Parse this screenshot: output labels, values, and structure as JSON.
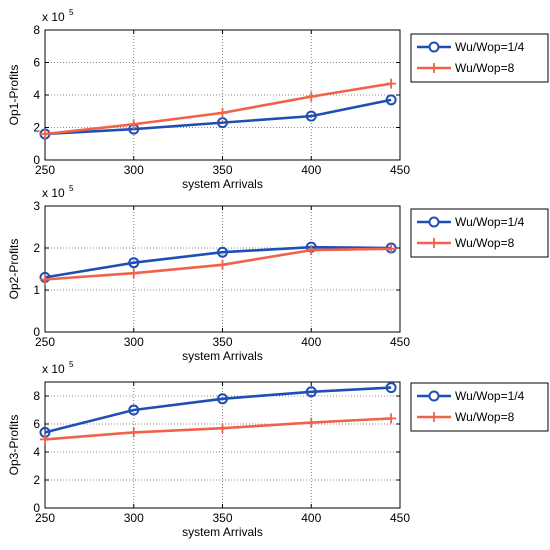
{
  "colors": {
    "series_1": "#1f4fb4",
    "series_2": "#f0624a",
    "grid": "#666666",
    "axis": "#000000"
  },
  "chart_data": [
    {
      "type": "line",
      "ylabel": "Op1-Profits",
      "xlabel": "system Arrivals",
      "y_multiplier": {
        "base": "x 10",
        "exp": "5"
      },
      "xlim": [
        250,
        450
      ],
      "ylim": [
        0,
        8
      ],
      "xticks": [
        250,
        300,
        350,
        400,
        450
      ],
      "yticks": [
        0,
        2,
        4,
        6,
        8
      ],
      "grid": true,
      "legend_position": "outside-right",
      "x": [
        250,
        300,
        350,
        400,
        445
      ],
      "series": [
        {
          "name": "Wu/Wop=1/4",
          "marker": "circle",
          "values": [
            1.6,
            1.9,
            2.3,
            2.7,
            3.7
          ]
        },
        {
          "name": "Wu/Wop=8",
          "marker": "plus",
          "values": [
            1.6,
            2.2,
            2.9,
            3.9,
            4.7
          ]
        }
      ]
    },
    {
      "type": "line",
      "ylabel": "Op2-Profits",
      "xlabel": "system Arrivals",
      "y_multiplier": {
        "base": "x 10",
        "exp": "5"
      },
      "xlim": [
        250,
        450
      ],
      "ylim": [
        0,
        3
      ],
      "xticks": [
        250,
        300,
        350,
        400,
        450
      ],
      "yticks": [
        0,
        1,
        2,
        3
      ],
      "grid": true,
      "legend_position": "outside-right",
      "x": [
        250,
        300,
        350,
        400,
        445
      ],
      "series": [
        {
          "name": "Wu/Wop=1/4",
          "marker": "circle",
          "values": [
            1.3,
            1.65,
            1.9,
            2.02,
            2.0
          ]
        },
        {
          "name": "Wu/Wop=8",
          "marker": "plus",
          "values": [
            1.25,
            1.4,
            1.6,
            1.95,
            1.98
          ]
        }
      ]
    },
    {
      "type": "line",
      "ylabel": "Op3-Profits",
      "xlabel": "system Arrivals",
      "y_multiplier": {
        "base": "x 10",
        "exp": "5"
      },
      "xlim": [
        250,
        450
      ],
      "ylim": [
        0,
        9
      ],
      "xticks": [
        250,
        300,
        350,
        400,
        450
      ],
      "yticks": [
        0,
        2,
        4,
        6,
        8
      ],
      "grid": true,
      "legend_position": "outside-right",
      "x": [
        250,
        300,
        350,
        400,
        445
      ],
      "series": [
        {
          "name": "Wu/Wop=1/4",
          "marker": "circle",
          "values": [
            5.4,
            7.0,
            7.8,
            8.3,
            8.6
          ]
        },
        {
          "name": "Wu/Wop=8",
          "marker": "plus",
          "values": [
            4.9,
            5.4,
            5.7,
            6.1,
            6.4
          ]
        }
      ]
    }
  ]
}
